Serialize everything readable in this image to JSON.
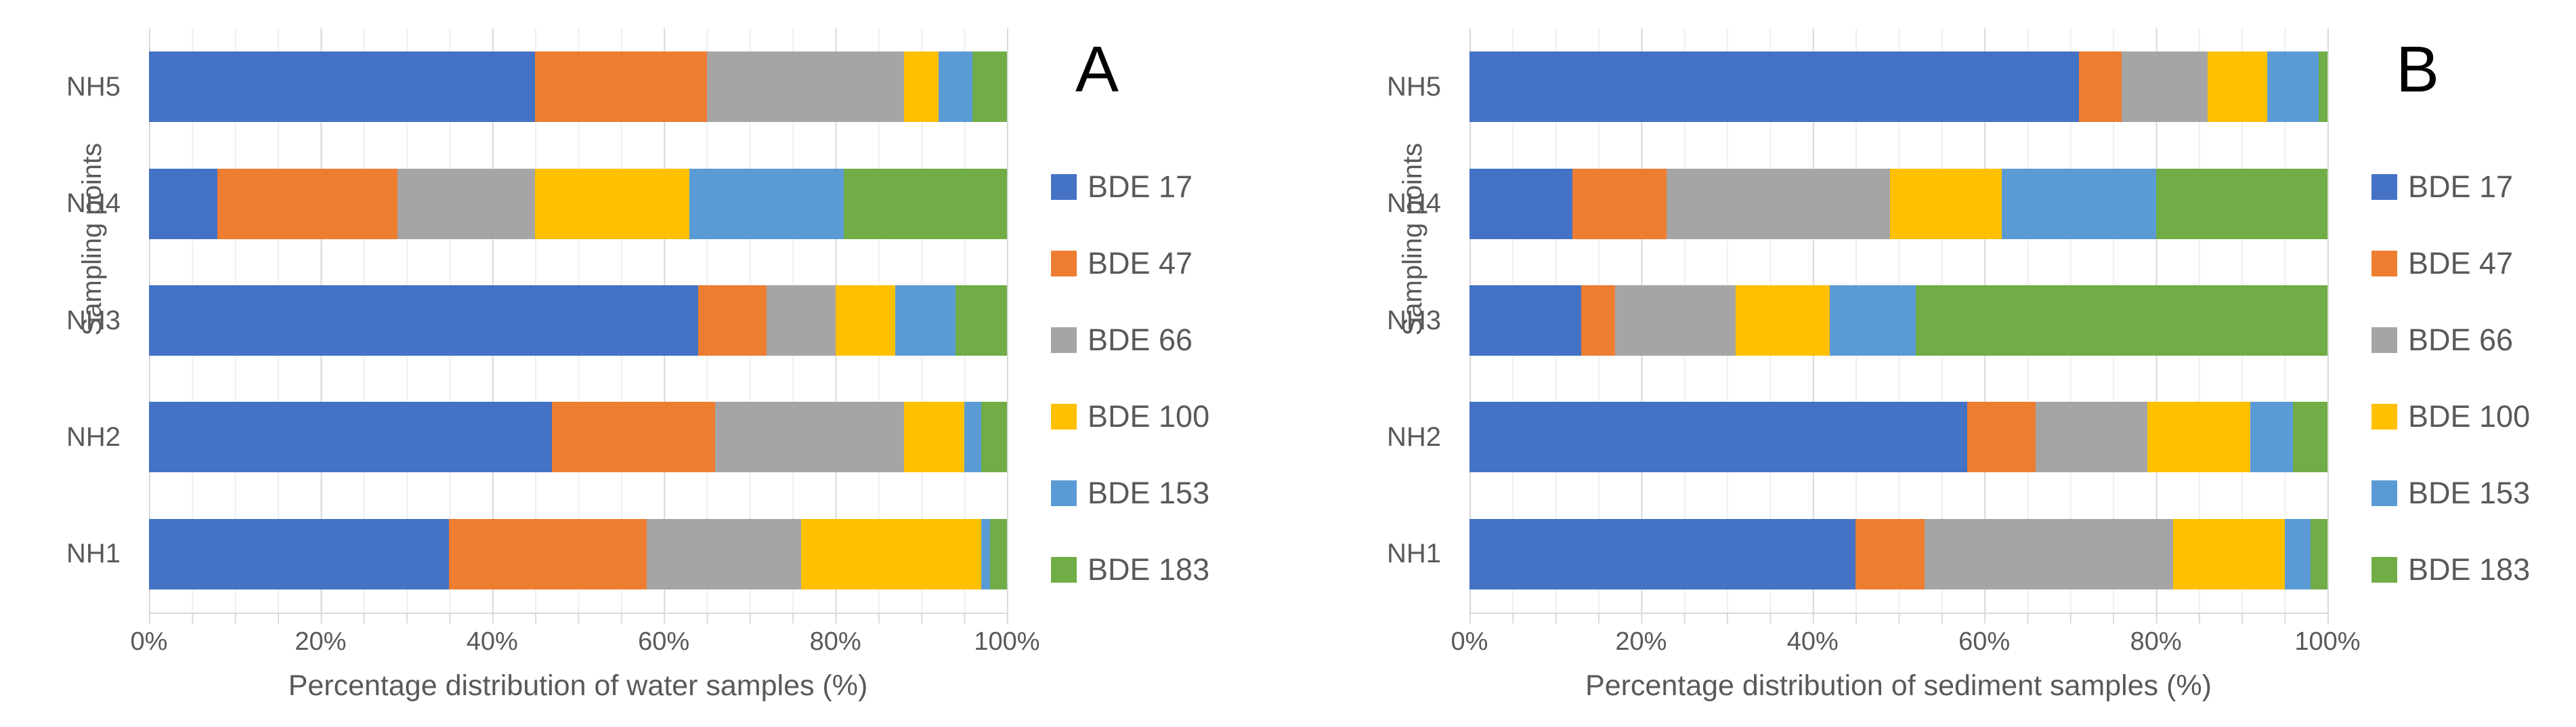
{
  "figure": {
    "panel_a_letter": "A",
    "panel_b_letter": "B"
  },
  "chart_data": [
    {
      "type": "bar",
      "orientation": "horizontal",
      "stacked": true,
      "units": "percent",
      "panel_label": "A",
      "xlabel": "Percentage distribution of water samples (%)",
      "ylabel": "Sampling points",
      "xlim": [
        0,
        100
      ],
      "x_ticks": [
        "0%",
        "20%",
        "40%",
        "60%",
        "80%",
        "100%"
      ],
      "grid": {
        "minor_step_pct": 5,
        "major_step_pct": 20,
        "gridlines": "on"
      },
      "legend_position": "right",
      "categories": [
        "NH5",
        "NH4",
        "NH3",
        "NH2",
        "NH1"
      ],
      "series": [
        {
          "name": "BDE 17",
          "color": "#4472C4",
          "values": [
            45,
            8,
            64,
            47,
            35
          ]
        },
        {
          "name": "BDE 47",
          "color": "#ED7D31",
          "values": [
            20,
            21,
            8,
            19,
            23
          ]
        },
        {
          "name": "BDE 66",
          "color": "#A5A5A5",
          "values": [
            23,
            16,
            8,
            22,
            18
          ]
        },
        {
          "name": "BDE 100",
          "color": "#FFC000",
          "values": [
            4,
            18,
            7,
            7,
            21
          ]
        },
        {
          "name": "BDE 153",
          "color": "#5B9BD5",
          "values": [
            4,
            18,
            7,
            2,
            1
          ]
        },
        {
          "name": "BDE 183",
          "color": "#70AD47",
          "values": [
            4,
            19,
            6,
            3,
            2
          ]
        }
      ]
    },
    {
      "type": "bar",
      "orientation": "horizontal",
      "stacked": true,
      "units": "percent",
      "panel_label": "B",
      "xlabel": "Percentage distribution of sediment samples (%)",
      "ylabel": "Sampling points",
      "xlim": [
        0,
        100
      ],
      "x_ticks": [
        "0%",
        "20%",
        "40%",
        "60%",
        "80%",
        "100%"
      ],
      "grid": {
        "minor_step_pct": 5,
        "major_step_pct": 20,
        "gridlines": "on"
      },
      "legend_position": "right",
      "categories": [
        "NH5",
        "NH4",
        "NH3",
        "NH2",
        "NH1"
      ],
      "series": [
        {
          "name": "BDE 17",
          "color": "#4472C4",
          "values": [
            71,
            12,
            13,
            58,
            45
          ]
        },
        {
          "name": "BDE 47",
          "color": "#ED7D31",
          "values": [
            5,
            11,
            4,
            8,
            8
          ]
        },
        {
          "name": "BDE 66",
          "color": "#A5A5A5",
          "values": [
            10,
            26,
            14,
            13,
            29
          ]
        },
        {
          "name": "BDE 100",
          "color": "#FFC000",
          "values": [
            7,
            13,
            11,
            12,
            13
          ]
        },
        {
          "name": "BDE 153",
          "color": "#5B9BD5",
          "values": [
            6,
            18,
            10,
            5,
            3
          ]
        },
        {
          "name": "BDE 183",
          "color": "#70AD47",
          "values": [
            1,
            20,
            48,
            4,
            2
          ]
        }
      ]
    }
  ]
}
